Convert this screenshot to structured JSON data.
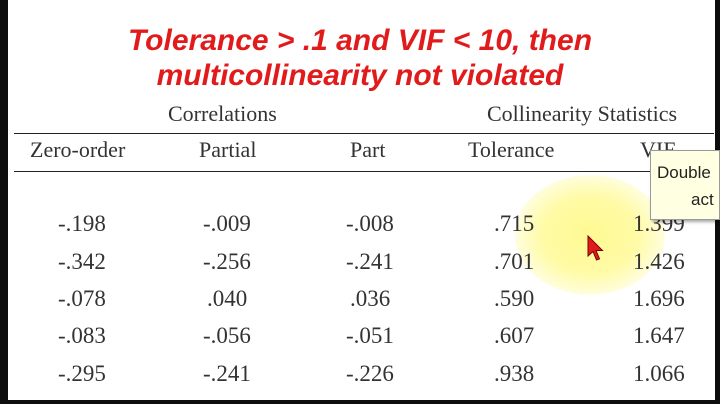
{
  "caption": {
    "line1": "Tolerance > .1 and VIF < 10, then",
    "line2": "multicollinearity not violated"
  },
  "table": {
    "group_headers": [
      "Correlations",
      "Collinearity Statistics"
    ],
    "columns": [
      "Zero-order",
      "Partial",
      "Part",
      "Tolerance",
      "VIF"
    ],
    "rows": [
      [
        "-.198",
        "-.009",
        "-.008",
        ".715",
        "1.399"
      ],
      [
        "-.342",
        "-.256",
        "-.241",
        ".701",
        "1.426"
      ],
      [
        "-.078",
        ".040",
        ".036",
        ".590",
        "1.696"
      ],
      [
        "-.083",
        "-.056",
        "-.051",
        ".607",
        "1.647"
      ],
      [
        "-.295",
        "-.241",
        "-.226",
        ".938",
        "1.066"
      ]
    ]
  },
  "tooltip": {
    "line1": "Double",
    "line2": "act"
  },
  "colors": {
    "caption": "#e11b1b",
    "highlight": "#fffa8c",
    "cursor": "#e11b1b",
    "tooltip_bg": "#ffffe1"
  },
  "icons": {
    "cursor": "arrow-cursor-icon"
  }
}
